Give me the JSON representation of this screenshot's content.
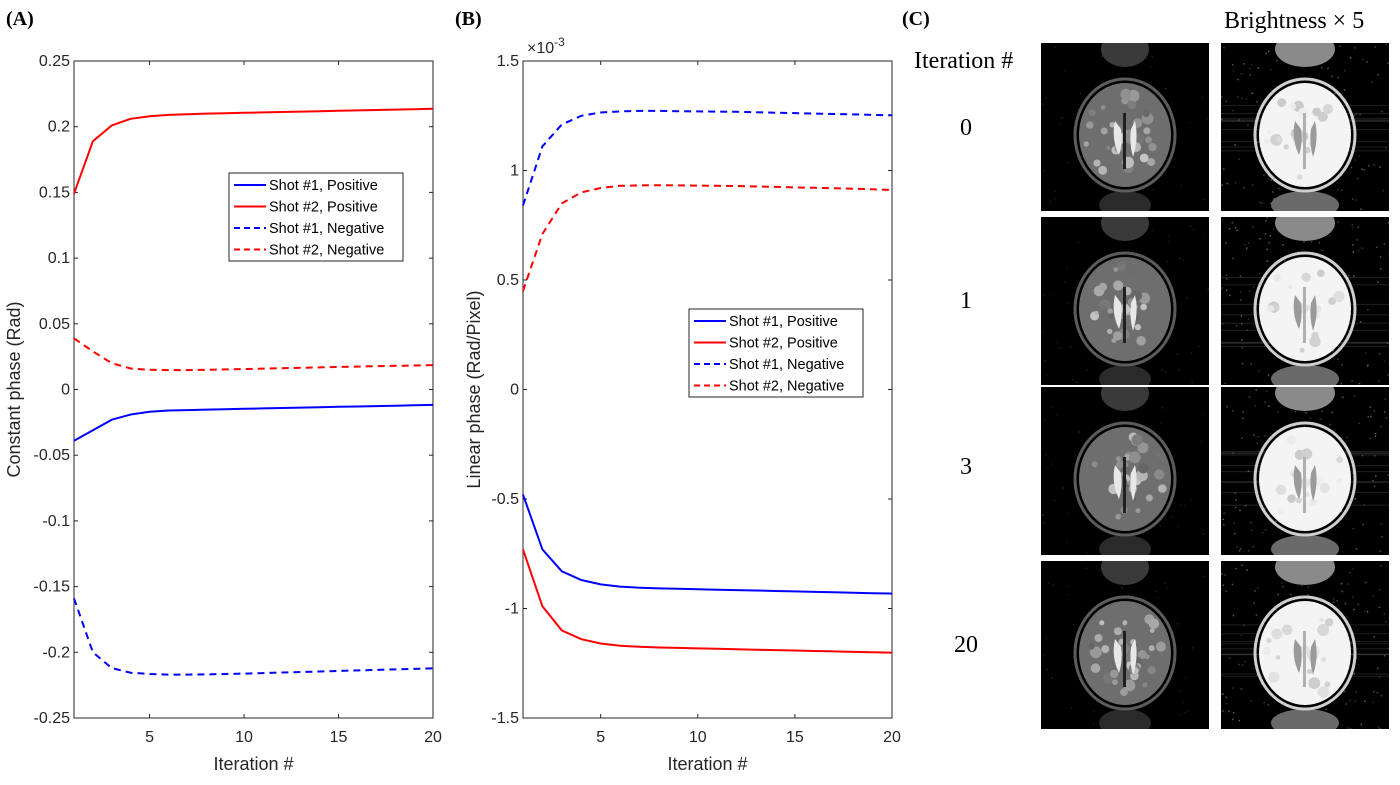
{
  "panels": {
    "a": "(A)",
    "b": "(B)",
    "c": "(C)"
  },
  "colors": {
    "shot1": "#0000ff",
    "shot2": "#ff0000"
  },
  "chart_data": [
    {
      "type": "line",
      "xlabel": "Iteration #",
      "ylabel": "Constant phase (Rad)",
      "xlim": [
        1,
        20
      ],
      "ylim": [
        -0.25,
        0.25
      ],
      "xticks": [
        5,
        10,
        15,
        20
      ],
      "yticks": [
        0.25,
        0.2,
        0.15,
        0.1,
        0.05,
        0,
        -0.05,
        -0.1,
        -0.15,
        -0.2,
        -0.25
      ],
      "ytick_labels": [
        "0.25",
        "0.2",
        "0.15",
        "0.1",
        "0.05",
        "0",
        "-0.05",
        "-0.1",
        "-0.15",
        "-0.2",
        "-0.25"
      ],
      "legend": "center-right",
      "x": [
        1,
        2,
        3,
        4,
        5,
        6,
        7,
        8,
        9,
        10,
        11,
        12,
        13,
        14,
        15,
        16,
        17,
        18,
        19,
        20
      ],
      "series": [
        {
          "name": "Shot #1, Positive",
          "color": "#0000ff",
          "style": "solid",
          "values": [
            -0.039,
            -0.031,
            -0.023,
            -0.019,
            -0.017,
            -0.016,
            -0.0157,
            -0.0153,
            -0.015,
            -0.0147,
            -0.0144,
            -0.0141,
            -0.0138,
            -0.0135,
            -0.0132,
            -0.0129,
            -0.0126,
            -0.0123,
            -0.012,
            -0.0117
          ]
        },
        {
          "name": "Shot #2, Positive",
          "color": "#ff0000",
          "style": "solid",
          "values": [
            0.149,
            0.189,
            0.201,
            0.206,
            0.208,
            0.209,
            0.2095,
            0.21,
            0.2103,
            0.2106,
            0.2109,
            0.2112,
            0.2115,
            0.2118,
            0.2121,
            0.2124,
            0.2127,
            0.213,
            0.2133,
            0.2136
          ]
        },
        {
          "name": "Shot #1, Negative",
          "color": "#0000ff",
          "style": "dashed",
          "values": [
            -0.159,
            -0.2,
            -0.212,
            -0.2155,
            -0.2165,
            -0.217,
            -0.217,
            -0.2168,
            -0.2165,
            -0.2162,
            -0.2158,
            -0.2154,
            -0.215,
            -0.2146,
            -0.2142,
            -0.2138,
            -0.2134,
            -0.213,
            -0.2126,
            -0.2122
          ]
        },
        {
          "name": "Shot #2, Negative",
          "color": "#ff0000",
          "style": "dashed",
          "values": [
            0.039,
            0.029,
            0.02,
            0.016,
            0.015,
            0.0148,
            0.0148,
            0.015,
            0.0153,
            0.0156,
            0.0159,
            0.0162,
            0.0165,
            0.0168,
            0.0171,
            0.0174,
            0.0177,
            0.018,
            0.0183,
            0.0186
          ]
        }
      ]
    },
    {
      "type": "line",
      "xlabel": "Iteration #",
      "ylabel": "Linear phase (Rad/Pixel)",
      "yexponent": "×10",
      "yexponent_power": "-3",
      "xlim": [
        1,
        20
      ],
      "ylim": [
        -1.5,
        1.5
      ],
      "xticks": [
        5,
        10,
        15,
        20
      ],
      "yticks": [
        1.5,
        1,
        0.5,
        0,
        -0.5,
        -1,
        -1.5
      ],
      "ytick_labels": [
        "1.5",
        "1",
        "0.5",
        "0",
        "-0.5",
        "-1",
        "-1.5"
      ],
      "legend": "center-right",
      "x": [
        1,
        2,
        3,
        4,
        5,
        6,
        7,
        8,
        9,
        10,
        11,
        12,
        13,
        14,
        15,
        16,
        17,
        18,
        19,
        20
      ],
      "series": [
        {
          "name": "Shot #1, Positive",
          "color": "#0000ff",
          "style": "solid",
          "values": [
            -0.48,
            -0.73,
            -0.83,
            -0.87,
            -0.89,
            -0.9,
            -0.905,
            -0.908,
            -0.91,
            -0.912,
            -0.914,
            -0.916,
            -0.918,
            -0.92,
            -0.922,
            -0.924,
            -0.926,
            -0.928,
            -0.93,
            -0.932
          ]
        },
        {
          "name": "Shot #2, Positive",
          "color": "#ff0000",
          "style": "solid",
          "values": [
            -0.73,
            -0.99,
            -1.1,
            -1.14,
            -1.16,
            -1.17,
            -1.175,
            -1.178,
            -1.18,
            -1.182,
            -1.184,
            -1.186,
            -1.188,
            -1.19,
            -1.192,
            -1.194,
            -1.196,
            -1.198,
            -1.2,
            -1.202
          ]
        },
        {
          "name": "Shot #1, Negative",
          "color": "#0000ff",
          "style": "dashed",
          "values": [
            0.84,
            1.11,
            1.21,
            1.25,
            1.265,
            1.27,
            1.272,
            1.272,
            1.271,
            1.27,
            1.269,
            1.268,
            1.266,
            1.264,
            1.262,
            1.26,
            1.258,
            1.256,
            1.254,
            1.252
          ]
        },
        {
          "name": "Shot #2, Negative",
          "color": "#ff0000",
          "style": "dashed",
          "values": [
            0.45,
            0.71,
            0.85,
            0.9,
            0.92,
            0.93,
            0.932,
            0.933,
            0.932,
            0.931,
            0.93,
            0.929,
            0.927,
            0.925,
            0.923,
            0.921,
            0.919,
            0.917,
            0.914,
            0.911
          ]
        }
      ]
    }
  ],
  "mri_panel": {
    "brightness_label": "Brightness × 5",
    "iteration_header": "Iteration #",
    "iterations": [
      "0",
      "1",
      "3",
      "20"
    ]
  }
}
